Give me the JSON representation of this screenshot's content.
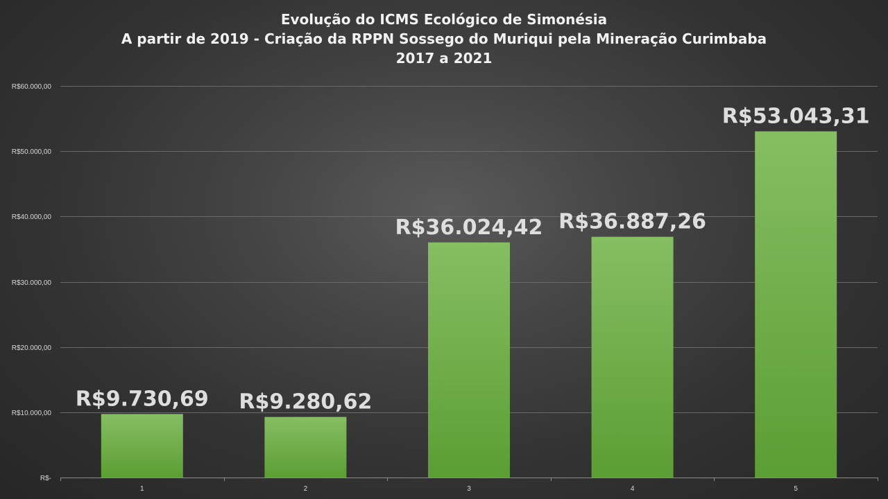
{
  "chart_data": {
    "type": "bar",
    "title_lines": [
      "Evolução do ICMS Ecológico de Simonésia",
      "A partir de 2019 - Criação da RPPN Sossego do Muriqui pela Mineração Curimbaba",
      "2017 a 2021"
    ],
    "categories": [
      "1",
      "2",
      "3",
      "4",
      "5"
    ],
    "values": [
      9730.69,
      9280.62,
      36024.42,
      36887.26,
      53043.31
    ],
    "data_labels": [
      "R$9.730,69",
      "R$9.280,62",
      "R$36.024,42",
      "R$36.887,26",
      "R$53.043,31"
    ],
    "y_ticks": [
      0,
      10000,
      20000,
      30000,
      40000,
      50000,
      60000
    ],
    "y_tick_labels": [
      "R$-",
      "R$10.000,00",
      "R$20.000,00",
      "R$30.000,00",
      "R$40.000,00",
      "R$50.000,00",
      "R$60.000,00"
    ],
    "ylim": [
      0,
      60000
    ],
    "xlabel": "",
    "ylabel": "",
    "grid": true,
    "legend": "none",
    "colors": {
      "bar_top": "#86be62",
      "bar_bottom": "#5b9e33",
      "gridline": "#6a6a6a",
      "axis": "#8c8c8c",
      "text": "#d9d9d9"
    }
  }
}
